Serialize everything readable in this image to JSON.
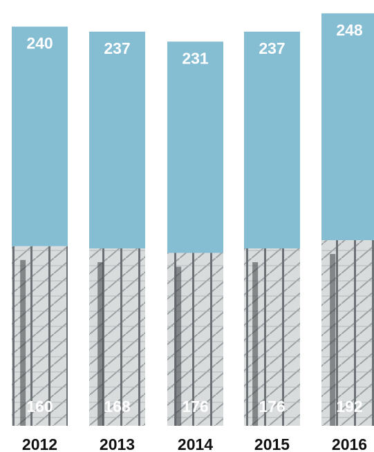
{
  "chart_data": {
    "type": "bar",
    "categories": [
      "2012",
      "2013",
      "2014",
      "2015",
      "2016"
    ],
    "series": [
      {
        "values": [
          240,
          237,
          231,
          237,
          248
        ]
      },
      {
        "values": [
          160,
          168,
          176,
          176,
          192
        ]
      }
    ],
    "top_labels": [
      "240",
      "237",
      "231",
      "237",
      "248"
    ],
    "bottom_labels": [
      "160",
      "168",
      "176",
      "176",
      "192"
    ],
    "ylim": [
      0,
      256
    ],
    "grid": false,
    "colors": {
      "bar_fill": "#85BDD3",
      "photo_light": "#d9dcdd",
      "photo_dark": "#3a3f42",
      "label_text": "#ffffff",
      "axis_text": "#111111"
    }
  }
}
